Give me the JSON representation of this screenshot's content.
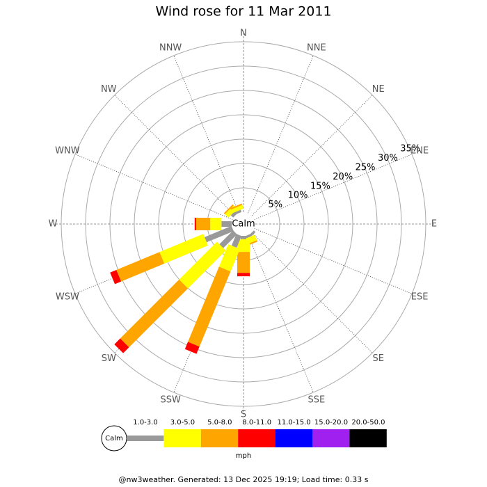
{
  "chart_data": {
    "type": "wind-rose",
    "title": "Wind rose for 11 Mar 2011",
    "calm_label": "Calm",
    "categories": [
      "N",
      "NNE",
      "NE",
      "ENE",
      "E",
      "ESE",
      "SE",
      "SSE",
      "S",
      "SSW",
      "SW",
      "WSW",
      "W",
      "WNW",
      "NW",
      "NNW"
    ],
    "rlim": [
      0,
      35
    ],
    "rticks": [
      {
        "value": 5,
        "label": "5%"
      },
      {
        "value": 10,
        "label": "10%"
      },
      {
        "value": 15,
        "label": "15%"
      },
      {
        "value": 20,
        "label": "20%"
      },
      {
        "value": 25,
        "label": "25%"
      },
      {
        "value": 30,
        "label": "30%"
      },
      {
        "value": 35,
        "label": "35%"
      }
    ],
    "series": [
      {
        "name": "1.0-3.0",
        "color": "#999999",
        "values": [
          0,
          0,
          0,
          0,
          0,
          0,
          0.5,
          0.5,
          0.7,
          2.6,
          4,
          6,
          2.1,
          0,
          0.7,
          0.5
        ]
      },
      {
        "name": "3.0-5.0",
        "color": "#ffff00",
        "values": [
          0,
          0,
          0,
          0,
          0,
          0,
          0,
          1.2,
          2.6,
          5,
          11,
          9.7,
          2.3,
          0,
          1,
          0.8
        ]
      },
      {
        "name": "5.0-8.0",
        "color": "#ffa500",
        "values": [
          0,
          0,
          0,
          0,
          0,
          0,
          0,
          0.3,
          4.3,
          16.7,
          17.1,
          9.6,
          2.9,
          0,
          0.3,
          0.3
        ]
      },
      {
        "name": "8.0-11.0",
        "color": "#ff0000",
        "values": [
          0,
          0,
          0,
          0,
          0,
          0,
          0,
          0,
          0.7,
          1.6,
          1.7,
          1.4,
          0.3,
          0,
          0,
          0
        ]
      },
      {
        "name": "11.0-15.0",
        "color": "#0000ff",
        "values": [
          0,
          0,
          0,
          0,
          0,
          0,
          0,
          0,
          0,
          0,
          0,
          0,
          0,
          0,
          0,
          0
        ]
      },
      {
        "name": "15.0-20.0",
        "color": "#a020f0",
        "values": [
          0,
          0,
          0,
          0,
          0,
          0,
          0,
          0,
          0,
          0,
          0,
          0,
          0,
          0,
          0,
          0
        ]
      },
      {
        "name": "20.0-50.0",
        "color": "#000000",
        "values": [
          0,
          0,
          0,
          0,
          0,
          0,
          0,
          0,
          0,
          0,
          0,
          0,
          0,
          0,
          0,
          0
        ]
      }
    ],
    "legend_unit": "mph",
    "footer": "@nw3weather. Generated: 13 Dec 2025 19:19; Load time: 0.33 s"
  }
}
